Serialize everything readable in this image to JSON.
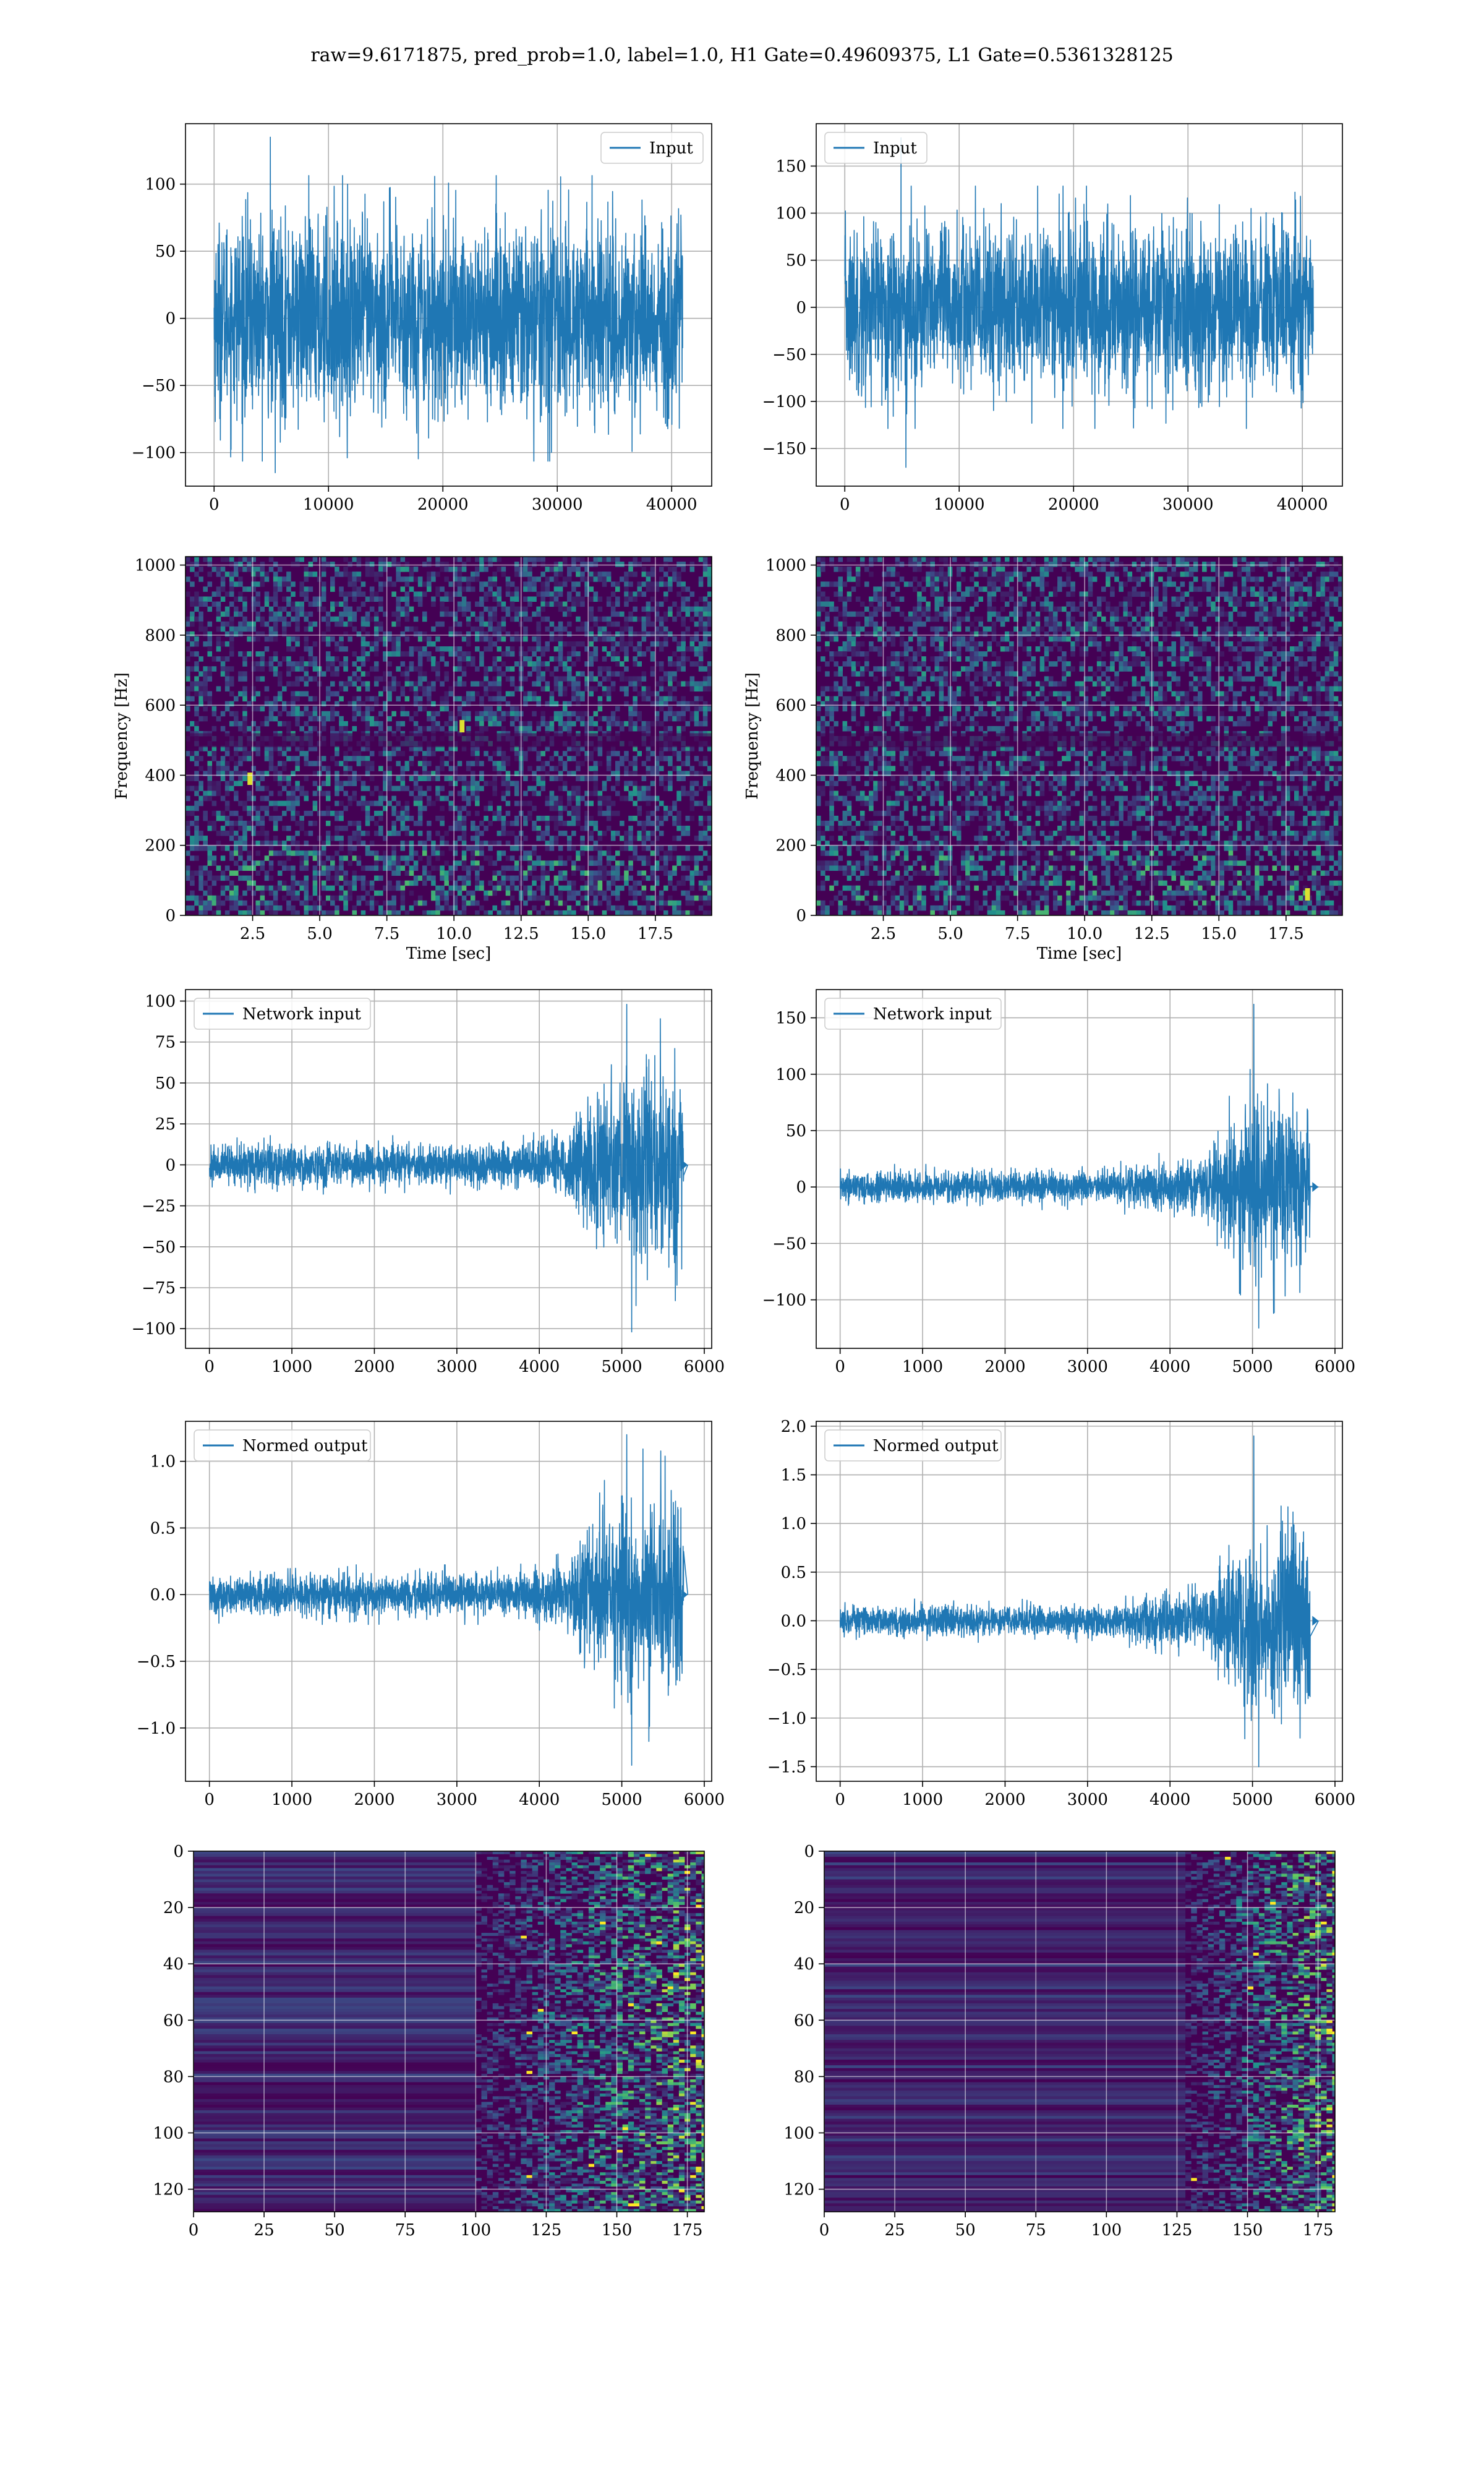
{
  "figure": {
    "suptitle": "raw=9.6171875, pred_prob=1.0, label=1.0, H1 Gate=0.49609375, L1 Gate=0.5361328125"
  },
  "colors": {
    "line": "#1f77b4",
    "grid": "#b0b0b0",
    "spine": "#000000",
    "viridis_low": "#440154",
    "viridis_high": "#fde725"
  },
  "chart_data": [
    {
      "id": "h1-input",
      "type": "line",
      "panel": "row1-left",
      "series": [
        {
          "name": "Input",
          "x_range": [
            0,
            40960
          ],
          "amplitude_envelope": [
            [
              0,
              95
            ],
            [
              5000,
              95
            ],
            [
              40960,
              95
            ]
          ],
          "peak_max": 135,
          "peak_min": -115
        }
      ],
      "xlim": [
        -2500,
        43500
      ],
      "ylim": [
        -125,
        145
      ],
      "xticks": [
        0,
        10000,
        20000,
        30000,
        40000
      ],
      "xtick_labels": [
        "0",
        "10000",
        "20000",
        "30000",
        "40000"
      ],
      "yticks": [
        -100,
        -50,
        0,
        50,
        100
      ],
      "ytick_labels": [
        "−100",
        "−50",
        "0",
        "50",
        "100"
      ],
      "legend": "top-right",
      "grid": true,
      "xlabel": "",
      "ylabel": ""
    },
    {
      "id": "l1-input",
      "type": "line",
      "panel": "row1-right",
      "series": [
        {
          "name": "Input",
          "x_range": [
            0,
            40960
          ],
          "amplitude_envelope": [
            [
              0,
              115
            ],
            [
              40960,
              115
            ]
          ],
          "peak_max": 180,
          "peak_min": -170
        }
      ],
      "xlim": [
        -2500,
        43500
      ],
      "ylim": [
        -190,
        195
      ],
      "xticks": [
        0,
        10000,
        20000,
        30000,
        40000
      ],
      "xtick_labels": [
        "0",
        "10000",
        "20000",
        "30000",
        "40000"
      ],
      "yticks": [
        -150,
        -100,
        -50,
        0,
        50,
        100,
        150
      ],
      "ytick_labels": [
        "−150",
        "−100",
        "−50",
        "0",
        "50",
        "100",
        "150"
      ],
      "legend": "top-left",
      "grid": true,
      "xlabel": "",
      "ylabel": ""
    },
    {
      "id": "h1-spectrogram",
      "type": "heatmap",
      "panel": "row2-left",
      "xlim": [
        0,
        19.6
      ],
      "ylim": [
        0,
        1024
      ],
      "xticks": [
        2.5,
        5.0,
        7.5,
        10.0,
        12.5,
        15.0,
        17.5
      ],
      "xtick_labels": [
        "2.5",
        "5.0",
        "7.5",
        "10.0",
        "12.5",
        "15.0",
        "17.5"
      ],
      "yticks": [
        0,
        200,
        400,
        600,
        800,
        1000
      ],
      "ytick_labels": [
        "0",
        "200",
        "400",
        "600",
        "800",
        "1000"
      ],
      "xlabel": "Time [sec]",
      "ylabel": "Frequency [Hz]",
      "grid": true,
      "hot_spots": [
        [
          2.4,
          390
        ],
        [
          10.3,
          540
        ]
      ]
    },
    {
      "id": "l1-spectrogram",
      "type": "heatmap",
      "panel": "row2-right",
      "xlim": [
        0,
        19.6
      ],
      "ylim": [
        0,
        1024
      ],
      "xticks": [
        2.5,
        5.0,
        7.5,
        10.0,
        12.5,
        15.0,
        17.5
      ],
      "xtick_labels": [
        "2.5",
        "5.0",
        "7.5",
        "10.0",
        "12.5",
        "15.0",
        "17.5"
      ],
      "yticks": [
        0,
        200,
        400,
        600,
        800,
        1000
      ],
      "ytick_labels": [
        "0",
        "200",
        "400",
        "600",
        "800",
        "1000"
      ],
      "xlabel": "Time [sec]",
      "ylabel": "Frequency [Hz]",
      "grid": true,
      "hot_spots": [
        [
          18.3,
          60
        ]
      ]
    },
    {
      "id": "h1-network-input",
      "type": "line",
      "panel": "row3-left",
      "series": [
        {
          "name": "Network input",
          "x_range": [
            0,
            5800
          ],
          "amplitude_envelope": [
            [
              0,
              16
            ],
            [
              3500,
              16
            ],
            [
              4300,
              22
            ],
            [
              4600,
              50
            ],
            [
              5000,
              75
            ],
            [
              5500,
              80
            ],
            [
              5750,
              70
            ]
          ],
          "peak_max": 98,
          "peak_min": -102,
          "end_x": 5750,
          "tail_end": 5800
        }
      ],
      "xlim": [
        -290,
        6090
      ],
      "ylim": [
        -112,
        107
      ],
      "xticks": [
        0,
        1000,
        2000,
        3000,
        4000,
        5000,
        6000
      ],
      "xtick_labels": [
        "0",
        "1000",
        "2000",
        "3000",
        "4000",
        "5000",
        "6000"
      ],
      "yticks": [
        -100,
        -75,
        -50,
        -25,
        0,
        25,
        50,
        75,
        100
      ],
      "ytick_labels": [
        "−100",
        "−75",
        "−50",
        "−25",
        "0",
        "25",
        "50",
        "75",
        "100"
      ],
      "legend": "top-left",
      "grid": true,
      "xlabel": "",
      "ylabel": ""
    },
    {
      "id": "l1-network-input",
      "type": "line",
      "panel": "row3-right",
      "series": [
        {
          "name": "Network input",
          "x_range": [
            0,
            5800
          ],
          "amplitude_envelope": [
            [
              0,
              18
            ],
            [
              3300,
              18
            ],
            [
              3600,
              25
            ],
            [
              4400,
              30
            ],
            [
              4600,
              60
            ],
            [
              5000,
              100
            ],
            [
              5500,
              100
            ],
            [
              5700,
              80
            ]
          ],
          "peak_max": 162,
          "peak_min": -125,
          "end_x": 5700,
          "tail_end": 5800
        }
      ],
      "xlim": [
        -290,
        6090
      ],
      "ylim": [
        -143,
        175
      ],
      "xticks": [
        0,
        1000,
        2000,
        3000,
        4000,
        5000,
        6000
      ],
      "xtick_labels": [
        "0",
        "1000",
        "2000",
        "3000",
        "4000",
        "5000",
        "6000"
      ],
      "yticks": [
        -100,
        -50,
        0,
        50,
        100,
        150
      ],
      "ytick_labels": [
        "−100",
        "−50",
        "0",
        "50",
        "100",
        "150"
      ],
      "legend": "top-left",
      "grid": true,
      "xlabel": "",
      "ylabel": ""
    },
    {
      "id": "h1-normed-output",
      "type": "line",
      "panel": "row4-left",
      "series": [
        {
          "name": "Normed output",
          "x_range": [
            0,
            5800
          ],
          "amplitude_envelope": [
            [
              0,
              0.2
            ],
            [
              3500,
              0.2
            ],
            [
              4300,
              0.28
            ],
            [
              4600,
              0.6
            ],
            [
              5000,
              0.95
            ],
            [
              5500,
              1.0
            ],
            [
              5750,
              0.85
            ]
          ],
          "peak_max": 1.2,
          "peak_min": -1.28,
          "end_x": 5750,
          "tail_end": 5800
        }
      ],
      "xlim": [
        -290,
        6090
      ],
      "ylim": [
        -1.4,
        1.3
      ],
      "xticks": [
        0,
        1000,
        2000,
        3000,
        4000,
        5000,
        6000
      ],
      "xtick_labels": [
        "0",
        "1000",
        "2000",
        "3000",
        "4000",
        "5000",
        "6000"
      ],
      "yticks": [
        -1.0,
        -0.5,
        0.0,
        0.5,
        1.0
      ],
      "ytick_labels": [
        "−1.0",
        "−0.5",
        "0.0",
        "0.5",
        "1.0"
      ],
      "legend": "top-left",
      "grid": true,
      "xlabel": "",
      "ylabel": ""
    },
    {
      "id": "l1-normed-output",
      "type": "line",
      "panel": "row4-right",
      "series": [
        {
          "name": "Normed output",
          "x_range": [
            0,
            5800
          ],
          "amplitude_envelope": [
            [
              0,
              0.2
            ],
            [
              3300,
              0.2
            ],
            [
              3600,
              0.28
            ],
            [
              4400,
              0.35
            ],
            [
              4600,
              0.7
            ],
            [
              5000,
              1.2
            ],
            [
              5500,
              1.2
            ],
            [
              5700,
              1.0
            ]
          ],
          "peak_max": 1.9,
          "peak_min": -1.5,
          "end_x": 5700,
          "tail_end": 5800
        }
      ],
      "xlim": [
        -290,
        6090
      ],
      "ylim": [
        -1.65,
        2.05
      ],
      "xticks": [
        0,
        1000,
        2000,
        3000,
        4000,
        5000,
        6000
      ],
      "xtick_labels": [
        "0",
        "1000",
        "2000",
        "3000",
        "4000",
        "5000",
        "6000"
      ],
      "yticks": [
        -1.5,
        -1.0,
        -0.5,
        0.0,
        0.5,
        1.0,
        1.5,
        2.0
      ],
      "ytick_labels": [
        "−1.5",
        "−1.0",
        "−0.5",
        "0.0",
        "0.5",
        "1.0",
        "1.5",
        "2.0"
      ],
      "legend": "top-left",
      "grid": true,
      "xlabel": "",
      "ylabel": ""
    },
    {
      "id": "h1-feature-map",
      "type": "heatmap",
      "panel": "row5-left",
      "xlim": [
        0,
        181
      ],
      "ylim": [
        128,
        0
      ],
      "xticks": [
        0,
        25,
        50,
        75,
        100,
        125,
        150,
        175
      ],
      "xtick_labels": [
        "0",
        "25",
        "50",
        "75",
        "100",
        "125",
        "150",
        "175"
      ],
      "yticks": [
        0,
        20,
        40,
        60,
        80,
        100,
        120
      ],
      "ytick_labels": [
        "0",
        "20",
        "40",
        "60",
        "80",
        "100",
        "120"
      ],
      "grid": true,
      "activation_onset": 100,
      "xlabel": "",
      "ylabel": ""
    },
    {
      "id": "l1-feature-map",
      "type": "heatmap",
      "panel": "row5-right",
      "xlim": [
        0,
        181
      ],
      "ylim": [
        128,
        0
      ],
      "xticks": [
        0,
        25,
        50,
        75,
        100,
        125,
        150,
        175
      ],
      "xtick_labels": [
        "0",
        "25",
        "50",
        "75",
        "100",
        "125",
        "150",
        "175"
      ],
      "yticks": [
        0,
        20,
        40,
        60,
        80,
        100,
        120
      ],
      "ytick_labels": [
        "0",
        "20",
        "40",
        "60",
        "80",
        "100",
        "120"
      ],
      "grid": true,
      "activation_onset": 128,
      "xlabel": "",
      "ylabel": ""
    }
  ]
}
